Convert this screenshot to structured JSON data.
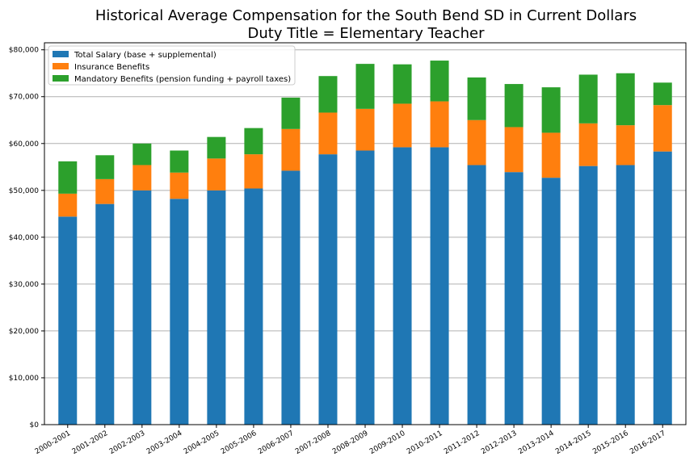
{
  "chart_data": {
    "type": "bar",
    "stacked": true,
    "title": "Historical Average Compensation for the South Bend SD in Current Dollars",
    "subtitle": "Duty Title = Elementary Teacher",
    "categories": [
      "2000-2001",
      "2001-2002",
      "2002-2003",
      "2003-2004",
      "2004-2005",
      "2005-2006",
      "2006-2007",
      "2007-2008",
      "2008-2009",
      "2009-2010",
      "2010-2011",
      "2011-2012",
      "2012-2013",
      "2013-2014",
      "2014-2015",
      "2015-2016",
      "2016-2017"
    ],
    "series": [
      {
        "name": "Total Salary (base + supplemental)",
        "color": "#1f77b4",
        "values": [
          44400,
          47100,
          50000,
          48200,
          50000,
          50400,
          54200,
          57700,
          58500,
          59200,
          59200,
          55400,
          53900,
          52700,
          55200,
          55400,
          58300
        ]
      },
      {
        "name": "Insurance Benefits",
        "color": "#ff7f0e",
        "values": [
          4900,
          5300,
          5400,
          5600,
          6800,
          7300,
          8900,
          8900,
          8900,
          9300,
          9800,
          9600,
          9600,
          9600,
          9100,
          8500,
          9900
        ]
      },
      {
        "name": "Mandatory Benefits (pension funding + payroll taxes)",
        "color": "#2ca02c",
        "values": [
          6900,
          5100,
          4600,
          4700,
          4600,
          5600,
          6700,
          7800,
          9600,
          8400,
          8700,
          9100,
          9200,
          9700,
          10400,
          11100,
          4800
        ]
      }
    ],
    "xlabel": "",
    "ylabel": "",
    "ylim": [
      0,
      81500
    ],
    "yticks": [
      0,
      10000,
      20000,
      30000,
      40000,
      50000,
      60000,
      70000,
      80000
    ],
    "ytick_labels": [
      "$0",
      "$10,000",
      "$20,000",
      "$30,000",
      "$40,000",
      "$50,000",
      "$60,000",
      "$70,000",
      "$80,000"
    ],
    "grid": "y",
    "legend_position": "top-left"
  }
}
